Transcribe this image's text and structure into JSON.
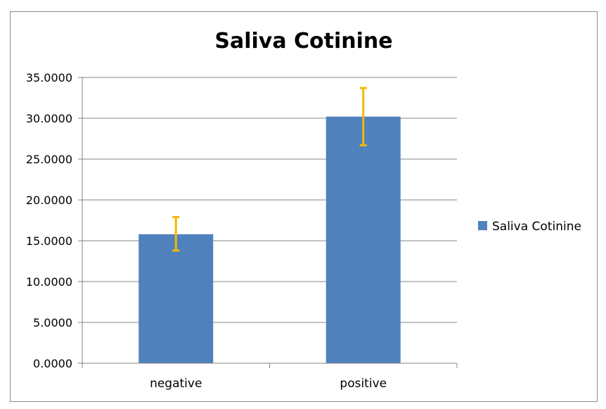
{
  "chart_data": {
    "type": "bar",
    "title": "Saliva Cotinine",
    "xlabel": "",
    "ylabel": "",
    "categories": [
      "negative",
      "positive"
    ],
    "series": [
      {
        "name": "Saliva Cotinine",
        "values": [
          15.8,
          30.2
        ],
        "error_low": [
          13.8,
          26.7
        ],
        "error_high": [
          17.9,
          33.7
        ],
        "color": "#4f81bd",
        "error_color": "#f5b800"
      }
    ],
    "ylim": [
      0,
      35
    ],
    "yticks": [
      "0.0000",
      "5.0000",
      "10.0000",
      "15.0000",
      "20.0000",
      "25.0000",
      "30.0000",
      "35.0000"
    ],
    "grid": true,
    "legend_position": "right"
  }
}
